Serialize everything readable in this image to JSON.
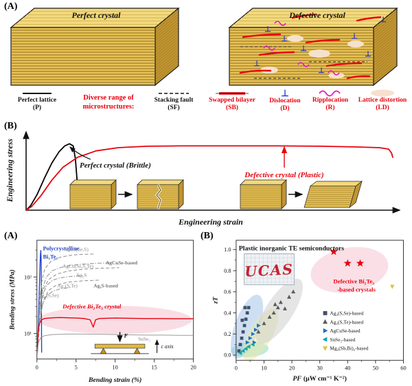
{
  "colors": {
    "accent_red": "#e8000d",
    "defect_blue": "#1a35d6",
    "ripplocation_magenta": "#e318c4",
    "crystal_gold": "#e9c254",
    "poly_blue": "#2144c9",
    "gray_curve": "#8a8a8a",
    "pink_highlight": "#f7c6d2"
  },
  "labels": {
    "top": "(A)",
    "mid": "(B)",
    "bottom_left": "(A)",
    "bottom_right": "(B)"
  },
  "top": {
    "perfect_title": "Perfect crystal",
    "defective_title": "Defective crystal",
    "legend": {
      "perfect_name": "Perfect lattice",
      "perfect_abbr": "(P)",
      "diverse_line1": "Diverse range of",
      "diverse_line2": "microstructures:",
      "items": [
        {
          "name": "Stacking fault",
          "abbr": "(SF)"
        },
        {
          "name": "Swapped bilayer",
          "abbr": "(SB)"
        },
        {
          "name": "Dislocation",
          "abbr": "(D)"
        },
        {
          "name": "Ripplocation",
          "abbr": "(R)"
        },
        {
          "name": "Lattice distortion",
          "abbr": "(LD)"
        }
      ]
    }
  },
  "schematic": {
    "ylabel": "Engineering stress",
    "xlabel": "Engineering strain",
    "brittle_label": "Perfect crystal  (Brittle)",
    "plastic_label": "Defective crystal  (Plastic)"
  },
  "bending": {
    "ylabel": "Bending stress (MPa)",
    "xlabel": "Bending strain (%)",
    "labels": [
      {
        "text": "Polycrystalline",
        "color": "#2144c9",
        "bold": true,
        "size": 8.5
      },
      {
        "text": "Bi₂Te₃",
        "color": "#2144c9",
        "bold": true,
        "size": 8.5
      },
      {
        "text": "AgCu(Se,S)",
        "color": "#8a8a8a",
        "size": 7.5
      },
      {
        "text": "AgCuSe-based",
        "color": "#777777",
        "bold": true,
        "size": 7.5
      },
      {
        "text": "AgCu(Se,S,Te)",
        "color": "#8a8a8a",
        "size": 7.5
      },
      {
        "text": "Ag₂S",
        "color": "#8a8a8a",
        "size": 7.5
      },
      {
        "text": "Ag₂(S,Te)",
        "color": "#8a8a8a",
        "size": 7.5
      },
      {
        "text": "Ag₂S-based",
        "color": "#777777",
        "bold": true,
        "size": 7.5
      },
      {
        "text": "Ag₂(S,Se)",
        "color": "#8a8a8a",
        "size": 7.5
      },
      {
        "text": "Defective Bi₂Te₃ crystal",
        "color": "#e8000d",
        "bold": true,
        "italic": true,
        "size": 9
      },
      {
        "text": "SnSe₂",
        "color": "#8a8a8a",
        "size": 7.5
      }
    ],
    "inset": {
      "force_label": "F",
      "axis_label": "c axis"
    }
  },
  "zt": {
    "title": "Plastic inorganic TE semiconductors",
    "ylabel": "zT",
    "xlabel_main": "PF",
    "xlabel_units": "(μW cm⁻¹ K⁻²)",
    "logo_text": "UCAS",
    "annotation_line1": "Defective Bi₂Te₃",
    "annotation_line2": "-based crystals"
  },
  "chart_data": [
    {
      "id": "stress-strain-schematic",
      "type": "line",
      "xlabel": "Engineering strain",
      "ylabel": "Engineering stress",
      "axis_style": "schematic arrows, no ticks; normalized 0-1 coordinates",
      "series": [
        {
          "name": "Perfect crystal (Brittle)",
          "color": "#000000",
          "width": 1.8,
          "points": [
            [
              0,
              0
            ],
            [
              0.012,
              0.06
            ],
            [
              0.03,
              0.22
            ],
            [
              0.05,
              0.45
            ],
            [
              0.07,
              0.66
            ],
            [
              0.09,
              0.82
            ],
            [
              0.105,
              0.9
            ],
            [
              0.118,
              0.93
            ],
            [
              0.128,
              0.9
            ],
            [
              0.134,
              0.72
            ],
            [
              0.138,
              0.45
            ],
            [
              0.141,
              0.18
            ]
          ]
        },
        {
          "name": "Defective crystal (Plastic)",
          "color": "#e8000d",
          "width": 1.8,
          "points": [
            [
              0,
              0
            ],
            [
              0.015,
              0.05
            ],
            [
              0.04,
              0.2
            ],
            [
              0.07,
              0.42
            ],
            [
              0.1,
              0.6
            ],
            [
              0.14,
              0.74
            ],
            [
              0.19,
              0.83
            ],
            [
              0.25,
              0.875
            ],
            [
              0.33,
              0.895
            ],
            [
              0.42,
              0.9
            ],
            [
              0.55,
              0.9
            ],
            [
              0.68,
              0.9
            ],
            [
              0.8,
              0.895
            ],
            [
              0.9,
              0.885
            ],
            [
              0.96,
              0.875
            ],
            [
              0.985,
              0.855
            ],
            [
              0.993,
              0.8
            ],
            [
              0.996,
              0.74
            ]
          ]
        }
      ]
    },
    {
      "id": "bending-stress-strain",
      "type": "line",
      "xlabel": "Bending strain (%)",
      "ylabel": "Bending stress (MPa)",
      "xlim": [
        0,
        20
      ],
      "yscale": "log",
      "ylim": [
        4.5,
        400
      ],
      "xticks": [
        0,
        5,
        10,
        15,
        20
      ],
      "yticks": [
        {
          "v": 10,
          "label": "10¹"
        },
        {
          "v": 100,
          "label": "10²"
        }
      ],
      "series": [
        {
          "name": "Polycrystalline Bi₂Te₃",
          "color": "#2144c9",
          "width": 1.4,
          "points": [
            [
              0.05,
              4.5
            ],
            [
              0.2,
              18
            ],
            [
              0.3,
              55
            ],
            [
              0.38,
              130
            ],
            [
              0.45,
              250
            ],
            [
              0.5,
              295
            ],
            [
              0.55,
              180
            ],
            [
              0.58,
              25
            ],
            [
              0.6,
              4.6
            ]
          ]
        },
        {
          "name": "AgCu(Se,S)",
          "color": "#8a8a8a",
          "dash": "5,3",
          "width": 1,
          "points": [
            [
              0.05,
              4.5
            ],
            [
              0.3,
              30
            ],
            [
              0.6,
              80
            ],
            [
              1,
              140
            ],
            [
              1.8,
              190
            ],
            [
              3,
              225
            ],
            [
              4.5,
              245
            ],
            [
              6,
              252
            ],
            [
              7.5,
              255
            ]
          ]
        },
        {
          "name": "AgCu(Se,S,Te)",
          "color": "#8a8a8a",
          "dash": "6,2,1.5,2",
          "width": 1,
          "points": [
            [
              0.05,
              4.5
            ],
            [
              0.3,
              25
            ],
            [
              0.7,
              60
            ],
            [
              1.2,
              100
            ],
            [
              2,
              130
            ],
            [
              3.5,
              155
            ],
            [
              5.5,
              168
            ],
            [
              7.5,
              175
            ],
            [
              9.5,
              178
            ]
          ]
        },
        {
          "name": "AgCuSe-based",
          "color": "#8a8a8a",
          "dash": "5,3",
          "width": 1,
          "points": [
            [
              0.05,
              4.5
            ],
            [
              0.4,
              30
            ],
            [
              0.8,
              60
            ],
            [
              1.5,
              90
            ],
            [
              2.5,
              112
            ],
            [
              4,
              128
            ],
            [
              6,
              138
            ],
            [
              8,
              143
            ],
            [
              10.5,
              146
            ]
          ]
        },
        {
          "name": "Ag₂S",
          "color": "#8a8a8a",
          "dash": "6,2,1.5,2",
          "width": 1,
          "points": [
            [
              0.05,
              4.5
            ],
            [
              0.3,
              20
            ],
            [
              0.7,
              45
            ],
            [
              1.2,
              70
            ],
            [
              2,
              88
            ],
            [
              3,
              97
            ],
            [
              4.5,
              103
            ],
            [
              6,
              106
            ]
          ]
        },
        {
          "name": "Ag₂(S,Te)",
          "color": "#8a8a8a",
          "dash": "5,3",
          "width": 1,
          "points": [
            [
              0.05,
              4.5
            ],
            [
              0.4,
              18
            ],
            [
              0.8,
              38
            ],
            [
              1.5,
              58
            ],
            [
              2.5,
              72
            ],
            [
              4,
              81
            ],
            [
              6,
              86
            ],
            [
              8,
              88
            ]
          ]
        },
        {
          "name": "Ag₂(S,Se)",
          "color": "#8a8a8a",
          "dash": "6,2,1.5,2",
          "width": 1,
          "points": [
            [
              0.05,
              4.5
            ],
            [
              0.3,
              15
            ],
            [
              0.7,
              32
            ],
            [
              1.2,
              46
            ],
            [
              2,
              56
            ],
            [
              3,
              62
            ],
            [
              4.2,
              65
            ]
          ]
        },
        {
          "name": "Defective Bi₂Te₃ crystal",
          "color": "#e8000d",
          "width": 1.4,
          "points": [
            [
              0.05,
              4.5
            ],
            [
              0.15,
              10
            ],
            [
              0.3,
              15
            ],
            [
              0.6,
              17.5
            ],
            [
              1,
              18.5
            ],
            [
              2,
              19
            ],
            [
              3,
              19.2
            ],
            [
              4,
              19
            ],
            [
              5,
              18.8
            ],
            [
              6,
              18.5
            ],
            [
              6.8,
              17.5
            ],
            [
              7.2,
              13
            ],
            [
              7.5,
              17.5
            ],
            [
              8,
              18.5
            ],
            [
              10,
              18.8
            ],
            [
              12,
              18.6
            ],
            [
              14,
              18.4
            ],
            [
              16,
              18.4
            ],
            [
              18,
              18.3
            ],
            [
              20,
              18.3
            ]
          ]
        },
        {
          "name": "SnSe₂",
          "color": "#9a9a9a",
          "width": 1,
          "points": [
            [
              0.05,
              4.5
            ],
            [
              0.2,
              7
            ],
            [
              0.5,
              8.5
            ],
            [
              1,
              9.2
            ],
            [
              2,
              9.6
            ],
            [
              4,
              9.8
            ],
            [
              6,
              9.8
            ],
            [
              8,
              9.7
            ],
            [
              10,
              9.6
            ],
            [
              12,
              9.5
            ],
            [
              14,
              9.4
            ],
            [
              16,
              9.4
            ],
            [
              18,
              9.3
            ],
            [
              20,
              9.3
            ]
          ]
        }
      ]
    },
    {
      "id": "zt-vs-pf",
      "type": "scatter",
      "title": "Plastic inorganic TE semiconductors",
      "xlabel": "PF (μW cm⁻¹ K⁻²)",
      "ylabel": "zT",
      "xlim": [
        0,
        60
      ],
      "ylim": [
        0,
        1.0
      ],
      "xticks": [
        0,
        10,
        20,
        30,
        40,
        50,
        60
      ],
      "yticks": [
        0,
        0.2,
        0.4,
        0.6,
        0.8,
        1
      ],
      "ytick_labels": [
        "0.0",
        "0.2",
        "0.4",
        "0.6",
        "0.8",
        "1.0"
      ],
      "series": [
        {
          "name": "Defective Bi₂Te₃-based crystals",
          "marker": "star",
          "color": "#e8000d",
          "size": 6,
          "in_legend": false,
          "points": [
            [
              35,
              0.98
            ],
            [
              40,
              0.87
            ],
            [
              44.5,
              0.87
            ]
          ]
        },
        {
          "name": "Ag₂(S,Se)-based",
          "marker": "square",
          "color": "#44506b",
          "size": 3.2,
          "in_legend": true,
          "points": [
            [
              1,
              0.04
            ],
            [
              1.5,
              0.1
            ],
            [
              2,
              0.16
            ],
            [
              2.5,
              0.22
            ],
            [
              3,
              0.28
            ],
            [
              3.5,
              0.34
            ],
            [
              4,
              0.4
            ],
            [
              4.5,
              0.45
            ],
            [
              2.2,
              0.33
            ],
            [
              3.2,
              0.45
            ]
          ]
        },
        {
          "name": "Ag₂(S,Te)-based",
          "marker": "triangle-up",
          "color": "#5a5a5a",
          "size": 3.4,
          "in_legend": true,
          "points": [
            [
              8,
              0.22
            ],
            [
              10,
              0.3
            ],
            [
              12,
              0.36
            ],
            [
              13.5,
              0.4
            ],
            [
              15,
              0.45
            ],
            [
              16,
              0.5
            ],
            [
              17.5,
              0.44
            ],
            [
              19,
              0.55
            ],
            [
              20.5,
              0.6
            ],
            [
              14,
              0.48
            ]
          ]
        },
        {
          "name": "AgCuSe-based",
          "marker": "triangle-right",
          "color": "#1f6fc4",
          "size": 3.4,
          "in_legend": true,
          "points": [
            [
              4,
              0.12
            ],
            [
              5,
              0.16
            ],
            [
              6,
              0.2
            ],
            [
              7,
              0.24
            ],
            [
              8,
              0.28
            ],
            [
              6.5,
              0.12
            ]
          ]
        },
        {
          "name": "SnSe₂-based",
          "marker": "triangle-left",
          "color": "#12a5a0",
          "size": 3.4,
          "in_legend": true,
          "points": [
            [
              1.5,
              0.02
            ],
            [
              2.5,
              0.04
            ],
            [
              3.5,
              0.06
            ],
            [
              4.5,
              0.08
            ],
            [
              6,
              0.1
            ]
          ]
        },
        {
          "name": "Mg₃(Sb,Bi)₂-based",
          "marker": "triangle-down",
          "color": "#ddc23c",
          "size": 3.6,
          "in_legend": true,
          "points": [
            [
              56,
              0.65
            ]
          ]
        }
      ]
    }
  ]
}
